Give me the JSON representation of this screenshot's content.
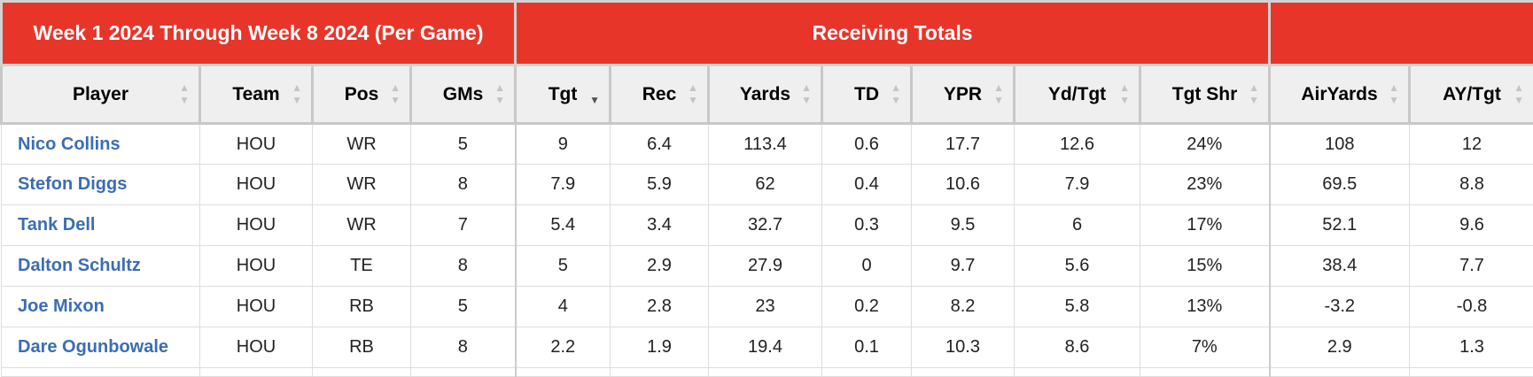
{
  "groups": {
    "period": "Week 1 2024 Through Week 8 2024 (Per Game)",
    "receiving": "Receiving Totals",
    "extra": ""
  },
  "columns": [
    "Player",
    "Team",
    "Pos",
    "GMs",
    "Tgt",
    "Rec",
    "Yards",
    "TD",
    "YPR",
    "Yd/Tgt",
    "Tgt Shr",
    "AirYards",
    "AY/Tgt"
  ],
  "sorted_column": "Tgt",
  "sort_direction": "descending",
  "rows": [
    [
      "Nico Collins",
      "HOU",
      "WR",
      "5",
      "9",
      "6.4",
      "113.4",
      "0.6",
      "17.7",
      "12.6",
      "24%",
      "108",
      "12"
    ],
    [
      "Stefon Diggs",
      "HOU",
      "WR",
      "8",
      "7.9",
      "5.9",
      "62",
      "0.4",
      "10.6",
      "7.9",
      "23%",
      "69.5",
      "8.8"
    ],
    [
      "Tank Dell",
      "HOU",
      "WR",
      "7",
      "5.4",
      "3.4",
      "32.7",
      "0.3",
      "9.5",
      "6",
      "17%",
      "52.1",
      "9.6"
    ],
    [
      "Dalton Schultz",
      "HOU",
      "TE",
      "8",
      "5",
      "2.9",
      "27.9",
      "0",
      "9.7",
      "5.6",
      "15%",
      "38.4",
      "7.7"
    ],
    [
      "Joe Mixon",
      "HOU",
      "RB",
      "5",
      "4",
      "2.8",
      "23",
      "0.2",
      "8.2",
      "5.8",
      "13%",
      "-3.2",
      "-0.8"
    ],
    [
      "Dare Ogunbowale",
      "HOU",
      "RB",
      "8",
      "2.2",
      "1.9",
      "19.4",
      "0.1",
      "10.3",
      "8.6",
      "7%",
      "2.9",
      "1.3"
    ]
  ],
  "colors": {
    "header_red": "#e8352a",
    "column_header_bg": "#efefef",
    "player_link": "#3b6db3"
  },
  "icons": {
    "sort_up": "sort-up-arrow-icon",
    "sort_down": "sort-down-arrow-icon"
  }
}
